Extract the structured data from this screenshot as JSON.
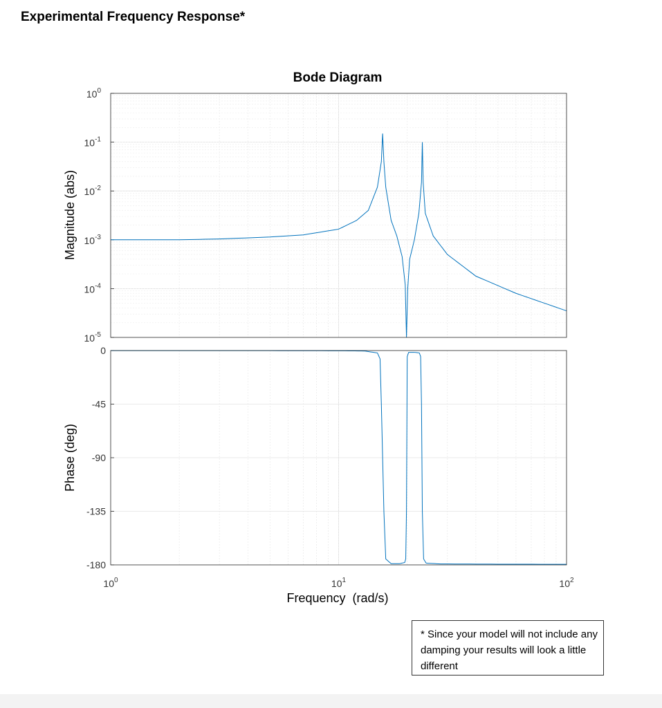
{
  "page": {
    "title": "Experimental Frequency Response*",
    "footnote": "* Since your model will not include any damping your results will look a little different"
  },
  "chart_data": {
    "type": "line",
    "title": "Bode Diagram",
    "xlabel": "Frequency  (rad/s)",
    "xscale": "log",
    "xlim": [
      1,
      100
    ],
    "x_ticks": [
      {
        "base": "10",
        "exp": "0"
      },
      {
        "base": "10",
        "exp": "1"
      },
      {
        "base": "10",
        "exp": "2"
      }
    ],
    "grid": true,
    "color": "#0072BD",
    "magnitude": {
      "ylabel": "Magnitude (abs)",
      "yscale": "log",
      "ylim": [
        1e-05,
        1
      ],
      "y_ticks": [
        {
          "base": "10",
          "exp": "0"
        },
        {
          "base": "10",
          "exp": "-1"
        },
        {
          "base": "10",
          "exp": "-2"
        },
        {
          "base": "10",
          "exp": "-3"
        },
        {
          "base": "10",
          "exp": "-4"
        },
        {
          "base": "10",
          "exp": "-5"
        }
      ],
      "x": [
        1,
        2,
        3,
        5,
        7,
        10,
        12,
        13.5,
        14.8,
        15.4,
        15.6,
        15.8,
        16.1,
        17,
        18,
        19,
        19.6,
        19.85,
        20.1,
        20.5,
        21.5,
        22.5,
        23.1,
        23.3,
        23.5,
        24,
        26,
        30,
        40,
        60,
        100
      ],
      "y": [
        0.001,
        0.001,
        0.00104,
        0.00114,
        0.00126,
        0.00165,
        0.0025,
        0.004,
        0.012,
        0.04,
        0.15,
        0.04,
        0.012,
        0.0025,
        0.0012,
        0.00045,
        0.00012,
        1e-05,
        0.0001,
        0.0004,
        0.001,
        0.0035,
        0.015,
        0.1,
        0.015,
        0.0035,
        0.0012,
        0.0005,
        0.00018,
        8e-05,
        3.5e-05
      ]
    },
    "phase": {
      "ylabel": "Phase (deg)",
      "ylim": [
        -180,
        0
      ],
      "y_ticks": [
        "0",
        "-45",
        "-90",
        "-135",
        "-180"
      ],
      "y_tick_values": [
        0,
        -45,
        -90,
        -135,
        -180
      ],
      "x": [
        1,
        5,
        10,
        13,
        14.8,
        15.2,
        15.4,
        15.6,
        15.8,
        16.1,
        17,
        18.5,
        19.5,
        19.7,
        19.85,
        20.0,
        20.3,
        21.5,
        22.6,
        22.9,
        23.1,
        23.3,
        23.6,
        24.2,
        28,
        50,
        100
      ],
      "y": [
        -0.1,
        -0.1,
        -0.2,
        -0.4,
        -2,
        -7,
        -45,
        -90,
        -135,
        -175,
        -179,
        -179,
        -178,
        -175,
        -135,
        -5,
        -1.5,
        -1.5,
        -2,
        -5,
        -45,
        -135,
        -175,
        -178.5,
        -179.2,
        -179.4,
        -179.5
      ]
    }
  }
}
